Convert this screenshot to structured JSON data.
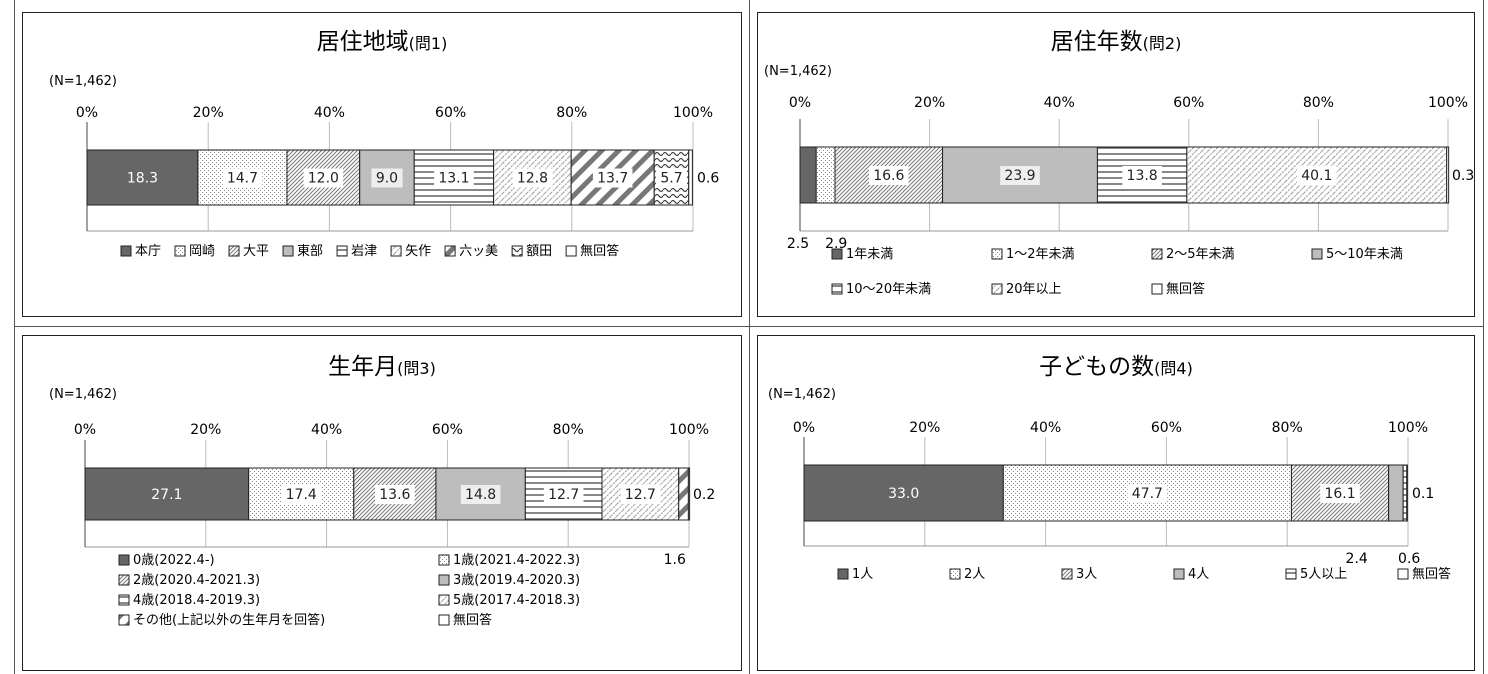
{
  "charts": [
    {
      "type": "bar",
      "orientation": "horizontal-stacked-100",
      "title": "居住地域",
      "title_suffix": "(問1)",
      "n_label": "(N=1,462)",
      "tick_labels": [
        "0%",
        "20%",
        "40%",
        "60%",
        "80%",
        "100%"
      ],
      "series": [
        {
          "name": "本庁",
          "values": [
            18.3
          ],
          "label": "18.3",
          "pattern": "dark"
        },
        {
          "name": "岡崎",
          "values": [
            14.7
          ],
          "label": "14.7",
          "pattern": "dots"
        },
        {
          "name": "大平",
          "values": [
            12.0
          ],
          "label": "12.0",
          "pattern": "hatch"
        },
        {
          "name": "東部",
          "values": [
            9.0
          ],
          "label": "9.0",
          "pattern": "gray"
        },
        {
          "name": "岩津",
          "values": [
            13.1
          ],
          "label": "13.1",
          "pattern": "hlines"
        },
        {
          "name": "矢作",
          "values": [
            12.8
          ],
          "label": "12.8",
          "pattern": "hatchlight"
        },
        {
          "name": "六ッ美",
          "values": [
            13.7
          ],
          "label": "13.7",
          "pattern": "diagbold"
        },
        {
          "name": "額田",
          "values": [
            5.7
          ],
          "label": "5.7",
          "pattern": "wave"
        },
        {
          "name": "無回答",
          "values": [
            0.6
          ],
          "label": "0.6",
          "pattern": "white"
        }
      ]
    },
    {
      "type": "bar",
      "orientation": "horizontal-stacked-100",
      "title": "居住年数",
      "title_suffix": "(問2)",
      "n_label": "(N=1,462)",
      "tick_labels": [
        "0%",
        "20%",
        "40%",
        "60%",
        "80%",
        "100%"
      ],
      "series": [
        {
          "name": "1年未満",
          "values": [
            2.5
          ],
          "label": "2.5",
          "pattern": "dark"
        },
        {
          "name": "1～2年未満",
          "values": [
            2.9
          ],
          "label": "2.9",
          "pattern": "dots"
        },
        {
          "name": "2～5年未満",
          "values": [
            16.6
          ],
          "label": "16.6",
          "pattern": "hatch"
        },
        {
          "name": "5～10年未満",
          "values": [
            23.9
          ],
          "label": "23.9",
          "pattern": "gray"
        },
        {
          "name": "10～20年未満",
          "values": [
            13.8
          ],
          "label": "13.8",
          "pattern": "hlines"
        },
        {
          "name": "20年以上",
          "values": [
            40.1
          ],
          "label": "40.1",
          "pattern": "hatchlight"
        },
        {
          "name": "無回答",
          "values": [
            0.3
          ],
          "label": "0.3",
          "pattern": "white"
        }
      ]
    },
    {
      "type": "bar",
      "orientation": "horizontal-stacked-100",
      "title": "生年月",
      "title_suffix": "(問3)",
      "n_label": "(N=1,462)",
      "tick_labels": [
        "0%",
        "20%",
        "40%",
        "60%",
        "80%",
        "100%"
      ],
      "series": [
        {
          "name": "0歳(2022.4-)",
          "values": [
            27.1
          ],
          "label": "27.1",
          "pattern": "dark"
        },
        {
          "name": "1歳(2021.4-2022.3)",
          "values": [
            17.4
          ],
          "label": "17.4",
          "pattern": "dots"
        },
        {
          "name": "2歳(2020.4-2021.3)",
          "values": [
            13.6
          ],
          "label": "13.6",
          "pattern": "hatch"
        },
        {
          "name": "3歳(2019.4-2020.3)",
          "values": [
            14.8
          ],
          "label": "14.8",
          "pattern": "gray"
        },
        {
          "name": "4歳(2018.4-2019.3)",
          "values": [
            12.7
          ],
          "label": "12.7",
          "pattern": "hlines"
        },
        {
          "name": "5歳(2017.4-2018.3)",
          "values": [
            12.7
          ],
          "label": "12.7",
          "pattern": "hatchlight"
        },
        {
          "name": "その他(上記以外の生年月を回答)",
          "values": [
            1.6
          ],
          "label": "1.6",
          "pattern": "diagbold"
        },
        {
          "name": "無回答",
          "values": [
            0.2
          ],
          "label": "0.2",
          "pattern": "white"
        }
      ]
    },
    {
      "type": "bar",
      "orientation": "horizontal-stacked-100",
      "title": "子どもの数",
      "title_suffix": "(問4)",
      "n_label": "(N=1,462)",
      "tick_labels": [
        "0%",
        "20%",
        "40%",
        "60%",
        "80%",
        "100%"
      ],
      "series": [
        {
          "name": "1人",
          "values": [
            33.0
          ],
          "label": "33.0",
          "pattern": "dark"
        },
        {
          "name": "2人",
          "values": [
            47.7
          ],
          "label": "47.7",
          "pattern": "dots"
        },
        {
          "name": "3人",
          "values": [
            16.1
          ],
          "label": "16.1",
          "pattern": "hatch"
        },
        {
          "name": "4人",
          "values": [
            2.4
          ],
          "label": "2.4",
          "pattern": "gray"
        },
        {
          "name": "5人以上",
          "values": [
            0.6
          ],
          "label": "0.6",
          "pattern": "hlines"
        },
        {
          "name": "無回答",
          "values": [
            0.1
          ],
          "label": "0.1",
          "pattern": "white"
        }
      ]
    }
  ],
  "chart_data": [
    {
      "type": "bar",
      "title": "居住地域(問1)",
      "categories": [
        "(N=1,462)"
      ],
      "xlim": [
        0,
        100
      ],
      "series": [
        {
          "name": "本庁",
          "values": [
            18.3
          ]
        },
        {
          "name": "岡崎",
          "values": [
            14.7
          ]
        },
        {
          "name": "大平",
          "values": [
            12.0
          ]
        },
        {
          "name": "東部",
          "values": [
            9.0
          ]
        },
        {
          "name": "岩津",
          "values": [
            13.1
          ]
        },
        {
          "name": "矢作",
          "values": [
            12.8
          ]
        },
        {
          "name": "六ッ美",
          "values": [
            13.7
          ]
        },
        {
          "name": "額田",
          "values": [
            5.7
          ]
        },
        {
          "name": "無回答",
          "values": [
            0.6
          ]
        }
      ]
    },
    {
      "type": "bar",
      "title": "居住年数(問2)",
      "categories": [
        "(N=1,462)"
      ],
      "xlim": [
        0,
        100
      ],
      "series": [
        {
          "name": "1年未満",
          "values": [
            2.5
          ]
        },
        {
          "name": "1～2年未満",
          "values": [
            2.9
          ]
        },
        {
          "name": "2～5年未満",
          "values": [
            16.6
          ]
        },
        {
          "name": "5～10年未満",
          "values": [
            23.9
          ]
        },
        {
          "name": "10～20年未満",
          "values": [
            13.8
          ]
        },
        {
          "name": "20年以上",
          "values": [
            40.1
          ]
        },
        {
          "name": "無回答",
          "values": [
            0.3
          ]
        }
      ]
    },
    {
      "type": "bar",
      "title": "生年月(問3)",
      "categories": [
        "(N=1,462)"
      ],
      "xlim": [
        0,
        100
      ],
      "series": [
        {
          "name": "0歳(2022.4-)",
          "values": [
            27.1
          ]
        },
        {
          "name": "1歳(2021.4-2022.3)",
          "values": [
            17.4
          ]
        },
        {
          "name": "2歳(2020.4-2021.3)",
          "values": [
            13.6
          ]
        },
        {
          "name": "3歳(2019.4-2020.3)",
          "values": [
            14.8
          ]
        },
        {
          "name": "4歳(2018.4-2019.3)",
          "values": [
            12.7
          ]
        },
        {
          "name": "5歳(2017.4-2018.3)",
          "values": [
            12.7
          ]
        },
        {
          "name": "その他(上記以外の生年月を回答)",
          "values": [
            1.6
          ]
        },
        {
          "name": "無回答",
          "values": [
            0.2
          ]
        }
      ]
    },
    {
      "type": "bar",
      "title": "子どもの数(問4)",
      "categories": [
        "(N=1,462)"
      ],
      "xlim": [
        0,
        100
      ],
      "series": [
        {
          "name": "1人",
          "values": [
            33.0
          ]
        },
        {
          "name": "2人",
          "values": [
            47.7
          ]
        },
        {
          "name": "3人",
          "values": [
            16.1
          ]
        },
        {
          "name": "4人",
          "values": [
            2.4
          ]
        },
        {
          "name": "5人以上",
          "values": [
            0.6
          ]
        },
        {
          "name": "無回答",
          "values": [
            0.1
          ]
        }
      ]
    }
  ]
}
